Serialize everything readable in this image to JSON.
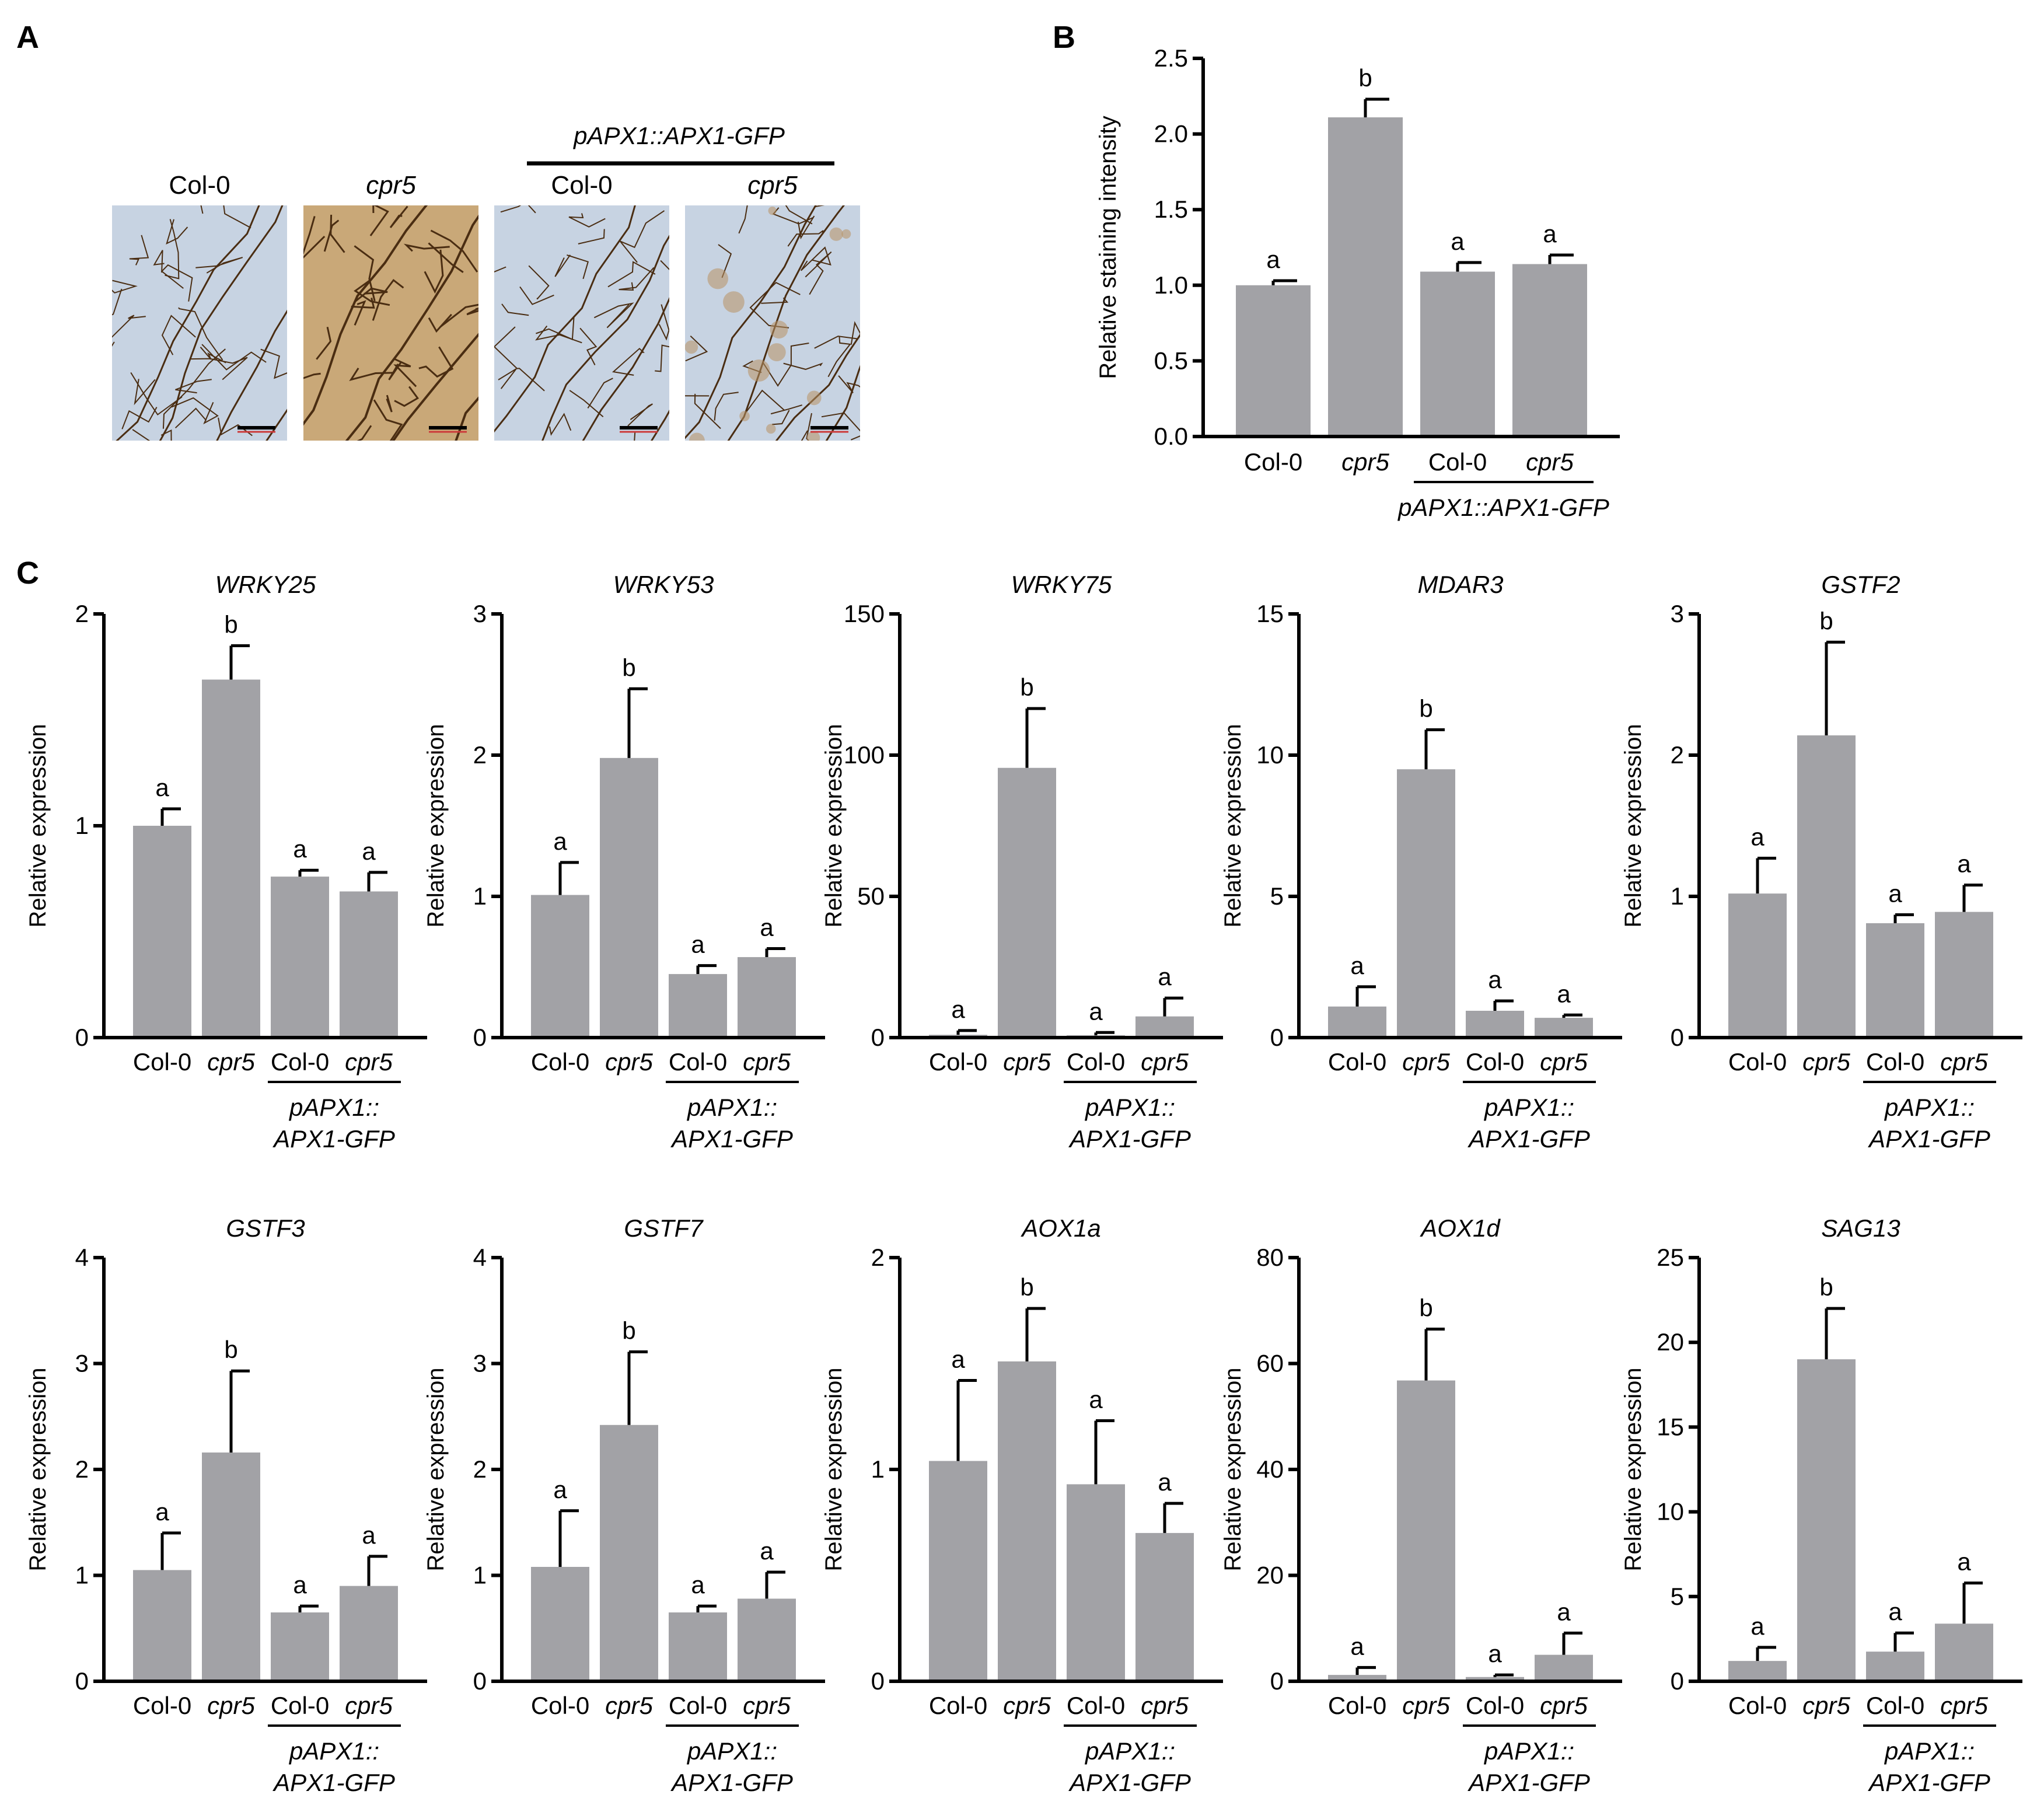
{
  "panels": {
    "A": "A",
    "B": "B",
    "C": "C"
  },
  "colors": {
    "bar": "#a2a2a6",
    "leaf_bg": "#c7d3e2",
    "stained_bg": "#c9a878",
    "vein": "#4a2d12"
  },
  "panel_a": {
    "group_label": "pAPX1::APX1-GFP",
    "photos": [
      {
        "caption": "Col-0",
        "italic": false,
        "stained": false
      },
      {
        "caption": "cpr5",
        "italic": true,
        "stained": true
      },
      {
        "caption": "Col-0",
        "italic": false,
        "stained": false
      },
      {
        "caption": "cpr5",
        "italic": true,
        "stained": "partial"
      }
    ]
  },
  "chart_data": [
    {
      "panel": "B",
      "type": "bar",
      "title": "",
      "ylabel": "Relative staining intensity",
      "ylim": [
        0,
        2.5
      ],
      "yticks": [
        "0.0",
        "0.5",
        "1.0",
        "1.5",
        "2.0",
        "2.5"
      ],
      "categories": [
        "Col-0",
        "cpr5",
        "Col-0",
        "cpr5"
      ],
      "categories_italic": [
        false,
        true,
        false,
        true
      ],
      "group_label": "pAPX1::APX1-GFP",
      "values": [
        1.0,
        2.11,
        1.09,
        1.14
      ],
      "errors": [
        0.03,
        0.12,
        0.06,
        0.06
      ],
      "significance": [
        "a",
        "b",
        "a",
        "a"
      ]
    },
    {
      "panel": "C",
      "type": "bar",
      "title": "WRKY25",
      "ylabel": "Relative expression",
      "ylim": [
        0,
        2
      ],
      "yticks": [
        "0",
        "1",
        "2"
      ],
      "categories": [
        "Col-0",
        "cpr5",
        "Col-0",
        "cpr5"
      ],
      "categories_italic": [
        false,
        true,
        false,
        true
      ],
      "group_label": [
        "pAPX1::",
        "APX1-GFP"
      ],
      "values": [
        1.0,
        1.69,
        0.76,
        0.69
      ],
      "errors": [
        0.08,
        0.16,
        0.03,
        0.09
      ],
      "significance": [
        "a",
        "b",
        "a",
        "a"
      ]
    },
    {
      "panel": "C",
      "type": "bar",
      "title": "WRKY53",
      "ylabel": "Relative expression",
      "ylim": [
        0,
        3
      ],
      "yticks": [
        "0",
        "1",
        "2",
        "3"
      ],
      "categories": [
        "Col-0",
        "cpr5",
        "Col-0",
        "cpr5"
      ],
      "categories_italic": [
        false,
        true,
        false,
        true
      ],
      "group_label": [
        "pAPX1::",
        "APX1-GFP"
      ],
      "values": [
        1.01,
        1.98,
        0.45,
        0.57
      ],
      "errors": [
        0.23,
        0.49,
        0.06,
        0.06
      ],
      "significance": [
        "a",
        "b",
        "a",
        "a"
      ]
    },
    {
      "panel": "C",
      "type": "bar",
      "title": "WRKY75",
      "ylabel": "Relative expression",
      "ylim": [
        0,
        150
      ],
      "yticks": [
        "0",
        "50",
        "100",
        "150"
      ],
      "categories": [
        "Col-0",
        "cpr5",
        "Col-0",
        "cpr5"
      ],
      "categories_italic": [
        false,
        true,
        false,
        true
      ],
      "group_label": [
        "pAPX1::",
        "APX1-GFP"
      ],
      "values": [
        1.0,
        95.5,
        0.8,
        7.5
      ],
      "errors": [
        1.5,
        21.0,
        1.0,
        6.5
      ],
      "significance": [
        "a",
        "b",
        "a",
        "a"
      ]
    },
    {
      "panel": "C",
      "type": "bar",
      "title": "MDAR3",
      "ylabel": "Relative expression",
      "ylim": [
        0,
        15
      ],
      "yticks": [
        "0",
        "5",
        "10",
        "15"
      ],
      "categories": [
        "Col-0",
        "cpr5",
        "Col-0",
        "cpr5"
      ],
      "categories_italic": [
        false,
        true,
        false,
        true
      ],
      "group_label": [
        "pAPX1::",
        "APX1-GFP"
      ],
      "values": [
        1.1,
        9.5,
        0.95,
        0.7
      ],
      "errors": [
        0.7,
        1.4,
        0.35,
        0.1
      ],
      "significance": [
        "a",
        "b",
        "a",
        "a"
      ]
    },
    {
      "panel": "C",
      "type": "bar",
      "title": "GSTF2",
      "ylabel": "Relative expression",
      "ylim": [
        0,
        3
      ],
      "yticks": [
        "0",
        "1",
        "2",
        "3"
      ],
      "categories": [
        "Col-0",
        "cpr5",
        "Col-0",
        "cpr5"
      ],
      "categories_italic": [
        false,
        true,
        false,
        true
      ],
      "group_label": [
        "pAPX1::",
        "APX1-GFP"
      ],
      "values": [
        1.02,
        2.14,
        0.81,
        0.89
      ],
      "errors": [
        0.25,
        0.66,
        0.06,
        0.19
      ],
      "significance": [
        "a",
        "b",
        "a",
        "a"
      ]
    },
    {
      "panel": "C",
      "type": "bar",
      "title": "GSTF3",
      "ylabel": "Relative expression",
      "ylim": [
        0,
        4
      ],
      "yticks": [
        "0",
        "1",
        "2",
        "3",
        "4"
      ],
      "categories": [
        "Col-0",
        "cpr5",
        "Col-0",
        "cpr5"
      ],
      "categories_italic": [
        false,
        true,
        false,
        true
      ],
      "group_label": [
        "pAPX1::",
        "APX1-GFP"
      ],
      "values": [
        1.05,
        2.16,
        0.65,
        0.9
      ],
      "errors": [
        0.35,
        0.77,
        0.06,
        0.28
      ],
      "significance": [
        "a",
        "b",
        "a",
        "a"
      ]
    },
    {
      "panel": "C",
      "type": "bar",
      "title": "GSTF7",
      "ylabel": "Relative expression",
      "ylim": [
        0,
        4
      ],
      "yticks": [
        "0",
        "1",
        "2",
        "3",
        "4"
      ],
      "categories": [
        "Col-0",
        "cpr5",
        "Col-0",
        "cpr5"
      ],
      "categories_italic": [
        false,
        true,
        false,
        true
      ],
      "group_label": [
        "pAPX1::",
        "APX1-GFP"
      ],
      "values": [
        1.08,
        2.42,
        0.65,
        0.78
      ],
      "errors": [
        0.53,
        0.69,
        0.06,
        0.25
      ],
      "significance": [
        "a",
        "b",
        "a",
        "a"
      ]
    },
    {
      "panel": "C",
      "type": "bar",
      "title": "AOX1a",
      "ylabel": "Relative expression",
      "ylim": [
        0,
        2
      ],
      "yticks": [
        "0",
        "1",
        "2"
      ],
      "categories": [
        "Col-0",
        "cpr5",
        "Col-0",
        "cpr5"
      ],
      "categories_italic": [
        false,
        true,
        false,
        true
      ],
      "group_label": [
        "pAPX1::",
        "APX1-GFP"
      ],
      "values": [
        1.04,
        1.51,
        0.93,
        0.7
      ],
      "errors": [
        0.38,
        0.25,
        0.3,
        0.14
      ],
      "significance": [
        "a",
        "b",
        "a",
        "a"
      ]
    },
    {
      "panel": "C",
      "type": "bar",
      "title": "AOX1d",
      "ylabel": "Relative expression",
      "ylim": [
        0,
        80
      ],
      "yticks": [
        "0",
        "20",
        "40",
        "60",
        "80"
      ],
      "categories": [
        "Col-0",
        "cpr5",
        "Col-0",
        "cpr5"
      ],
      "categories_italic": [
        false,
        true,
        false,
        true
      ],
      "group_label": [
        "pAPX1::",
        "APX1-GFP"
      ],
      "values": [
        1.2,
        56.8,
        0.8,
        5.0
      ],
      "errors": [
        1.4,
        9.7,
        0.4,
        4.1
      ],
      "significance": [
        "a",
        "b",
        "a",
        "a"
      ]
    },
    {
      "panel": "C",
      "type": "bar",
      "title": "SAG13",
      "ylabel": "Relative expression",
      "ylim": [
        0,
        25
      ],
      "yticks": [
        "0",
        "5",
        "10",
        "15",
        "20",
        "25"
      ],
      "categories": [
        "Col-0",
        "cpr5",
        "Col-0",
        "cpr5"
      ],
      "categories_italic": [
        false,
        true,
        false,
        true
      ],
      "group_label": [
        "pAPX1::",
        "APX1-GFP"
      ],
      "values": [
        1.2,
        19.0,
        1.75,
        3.4
      ],
      "errors": [
        0.8,
        3.0,
        1.1,
        2.4
      ],
      "significance": [
        "a",
        "b",
        "a",
        "a"
      ]
    }
  ]
}
